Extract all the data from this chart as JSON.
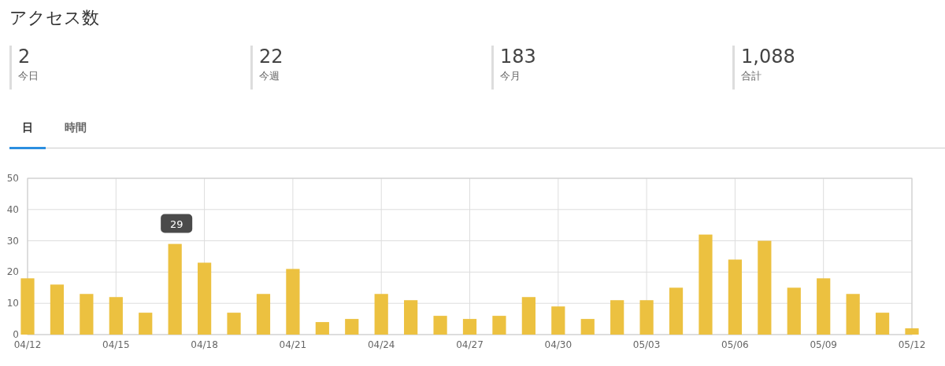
{
  "chart_data": [
    {
      "type": "other",
      "title": "アクセス数",
      "annotations": [
        "2",
        "今日",
        "22",
        "今週",
        "183",
        "今月",
        "1,088",
        "合計",
        "日",
        "時間"
      ]
    },
    {
      "type": "bar",
      "x": [
        "--04-12",
        "--04-13",
        "--04-14",
        "--04-15",
        "--04-16",
        "--04-17",
        "--04-18",
        "--04-19",
        "--04-20",
        "--04-21",
        "--04-22",
        "--04-23",
        "--04-24",
        "--04-25",
        "--04-26",
        "--04-27",
        "--04-28",
        "--04-29",
        "--04-30",
        "--05-01",
        "--05-02",
        "--05-03",
        "--05-04",
        "--05-05",
        "--05-06",
        "--05-07",
        "--05-08",
        "--05-09",
        "--05-10",
        "--05-11",
        "--05-12"
      ],
      "values": [
        18,
        16,
        13,
        12,
        7,
        29,
        23,
        7,
        13,
        21,
        4,
        5,
        13,
        11,
        6,
        5,
        6,
        12,
        9,
        5,
        11,
        11,
        15,
        32,
        24,
        30,
        15,
        18,
        13,
        7,
        2
      ],
      "color": "#ecc140",
      "xlim": [
        "--04-12",
        "--05-12"
      ],
      "xticks": [
        {
          "value": "--04-12",
          "label": "04/12"
        },
        {
          "value": "--04-15",
          "label": "04/15"
        },
        {
          "value": "--04-18",
          "label": "04/18"
        },
        {
          "value": "--04-21",
          "label": "04/21"
        },
        {
          "value": "--04-24",
          "label": "04/24"
        },
        {
          "value": "--04-27",
          "label": "04/27"
        },
        {
          "value": "--04-30",
          "label": "04/30"
        },
        {
          "value": "--05-03",
          "label": "05/03"
        },
        {
          "value": "--05-06",
          "label": "05/06"
        },
        {
          "value": "--05-09",
          "label": "05/09"
        },
        {
          "value": "--05-12",
          "label": "05/12"
        }
      ],
      "ylim": [
        0,
        50
      ],
      "yticks": [
        0,
        10,
        20,
        30,
        40,
        50
      ],
      "grid": true,
      "annotations": [
        {
          "text": "29",
          "x": "--04-17",
          "y": 29
        }
      ]
    }
  ]
}
